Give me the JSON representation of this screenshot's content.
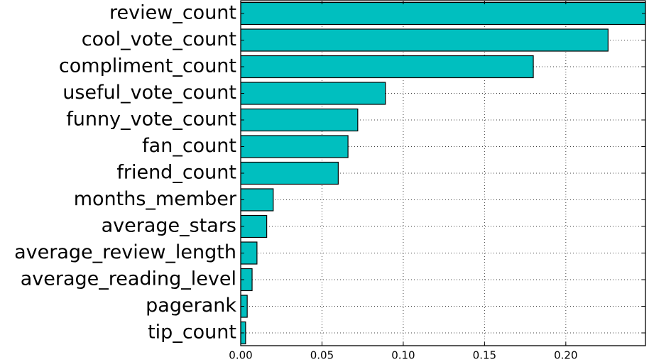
{
  "chart_data": {
    "type": "bar",
    "orientation": "horizontal",
    "categories": [
      "review_count",
      "cool_vote_count",
      "compliment_count",
      "useful_vote_count",
      "funny_vote_count",
      "fan_count",
      "friend_count",
      "months_member",
      "average_stars",
      "average_review_length",
      "average_reading_level",
      "pagerank",
      "tip_count"
    ],
    "values": [
      0.258,
      0.226,
      0.18,
      0.089,
      0.072,
      0.066,
      0.06,
      0.02,
      0.016,
      0.01,
      0.007,
      0.004,
      0.003
    ],
    "xlim": [
      0,
      0.249
    ],
    "xticks": [
      0.0,
      0.05,
      0.1,
      0.15,
      0.2
    ],
    "xtick_labels": [
      "0.00",
      "0.05",
      "0.10",
      "0.15",
      "0.20"
    ],
    "title": "",
    "xlabel": "",
    "ylabel": "",
    "grid": true,
    "bar_color": "#00bfbf",
    "edge_color": "#000000"
  }
}
